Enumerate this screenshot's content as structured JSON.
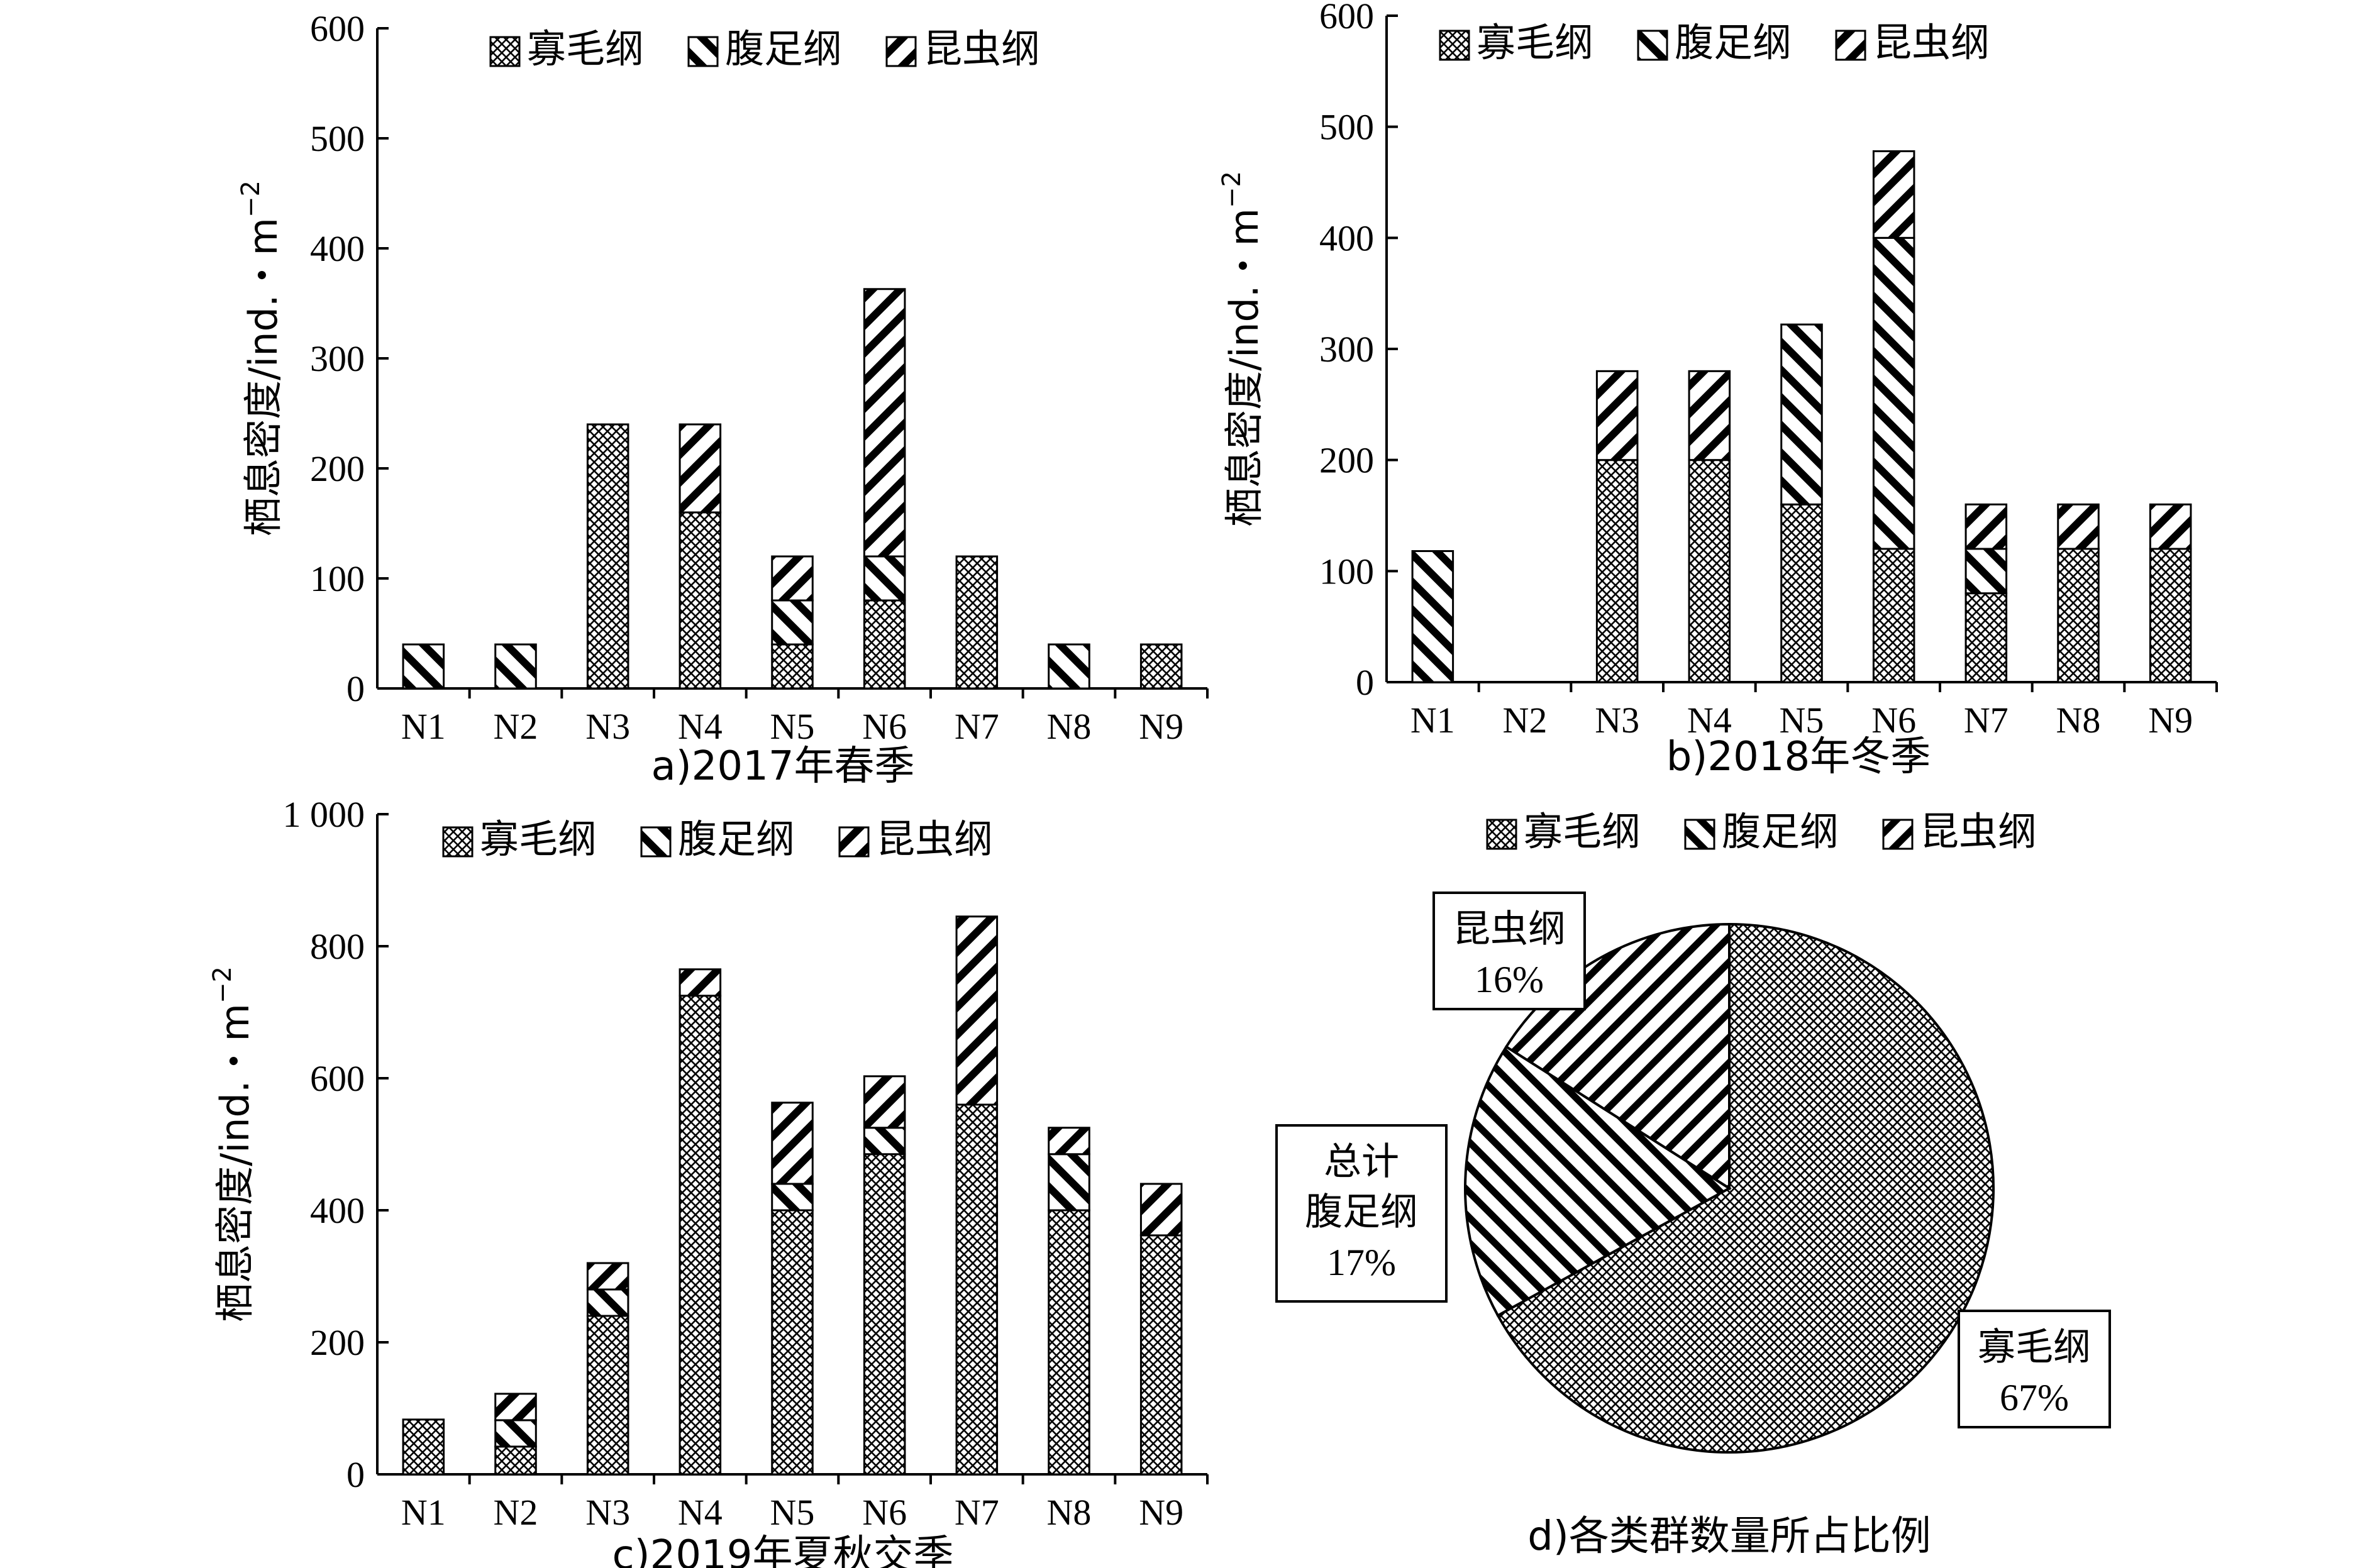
{
  "legend_labels": [
    "寡毛纲",
    "腹足纲",
    "昆虫纲"
  ],
  "ylabel": "栖息密度/ind.・m",
  "ylabel_sup": "−2",
  "chart_data": [
    {
      "type": "bar",
      "stacked": true,
      "caption": "a)2017年春季",
      "categories": [
        "N1",
        "N2",
        "N3",
        "N4",
        "N5",
        "N6",
        "N7",
        "N8",
        "N9"
      ],
      "ylim": [
        0,
        600
      ],
      "yticks": [
        "0",
        "100",
        "200",
        "300",
        "400",
        "500",
        "600"
      ],
      "series": [
        {
          "name": "寡毛纲",
          "values": [
            0,
            0,
            240,
            160,
            40,
            80,
            120,
            0,
            40
          ]
        },
        {
          "name": "腹足纲",
          "values": [
            40,
            40,
            0,
            0,
            40,
            40,
            0,
            40,
            0
          ]
        },
        {
          "name": "昆虫纲",
          "values": [
            0,
            0,
            0,
            80,
            40,
            243,
            0,
            0,
            0
          ]
        }
      ],
      "legend_position": "top"
    },
    {
      "type": "bar",
      "stacked": true,
      "caption": "b)2018年冬季",
      "categories": [
        "N1",
        "N2",
        "N3",
        "N4",
        "N5",
        "N6",
        "N7",
        "N8",
        "N9"
      ],
      "ylim": [
        0,
        600
      ],
      "yticks": [
        "0",
        "100",
        "200",
        "300",
        "400",
        "500",
        "600"
      ],
      "series": [
        {
          "name": "寡毛纲",
          "values": [
            0,
            0,
            200,
            200,
            160,
            120,
            80,
            120,
            120
          ]
        },
        {
          "name": "腹足纲",
          "values": [
            118,
            0,
            0,
            0,
            162,
            280,
            40,
            0,
            0
          ]
        },
        {
          "name": "昆虫纲",
          "values": [
            0,
            0,
            80,
            80,
            0,
            78,
            40,
            40,
            40
          ]
        }
      ],
      "legend_position": "top"
    },
    {
      "type": "bar",
      "stacked": true,
      "caption": "c)2019年夏秋交季",
      "categories": [
        "N1",
        "N2",
        "N3",
        "N4",
        "N5",
        "N6",
        "N7",
        "N8",
        "N9"
      ],
      "ylim": [
        0,
        1000
      ],
      "yticks": [
        "0",
        "200",
        "400",
        "600",
        "800",
        "1 000"
      ],
      "series": [
        {
          "name": "寡毛纲",
          "values": [
            83,
            42,
            240,
            725,
            400,
            485,
            560,
            400,
            362
          ]
        },
        {
          "name": "腹足纲",
          "values": [
            0,
            40,
            40,
            0,
            40,
            40,
            0,
            85,
            0
          ]
        },
        {
          "name": "昆虫纲",
          "values": [
            0,
            40,
            40,
            40,
            123,
            78,
            285,
            40,
            78
          ]
        }
      ],
      "legend_position": "top"
    },
    {
      "type": "pie",
      "caption": "d)各类群数量所占比例",
      "total_label": "总计",
      "slices": [
        {
          "name": "寡毛纲",
          "value": 67,
          "label": "67%"
        },
        {
          "name": "腹足纲",
          "value": 17,
          "label": "17%"
        },
        {
          "name": "昆虫纲",
          "value": 16,
          "label": "16%"
        }
      ],
      "legend_position": "top"
    }
  ]
}
